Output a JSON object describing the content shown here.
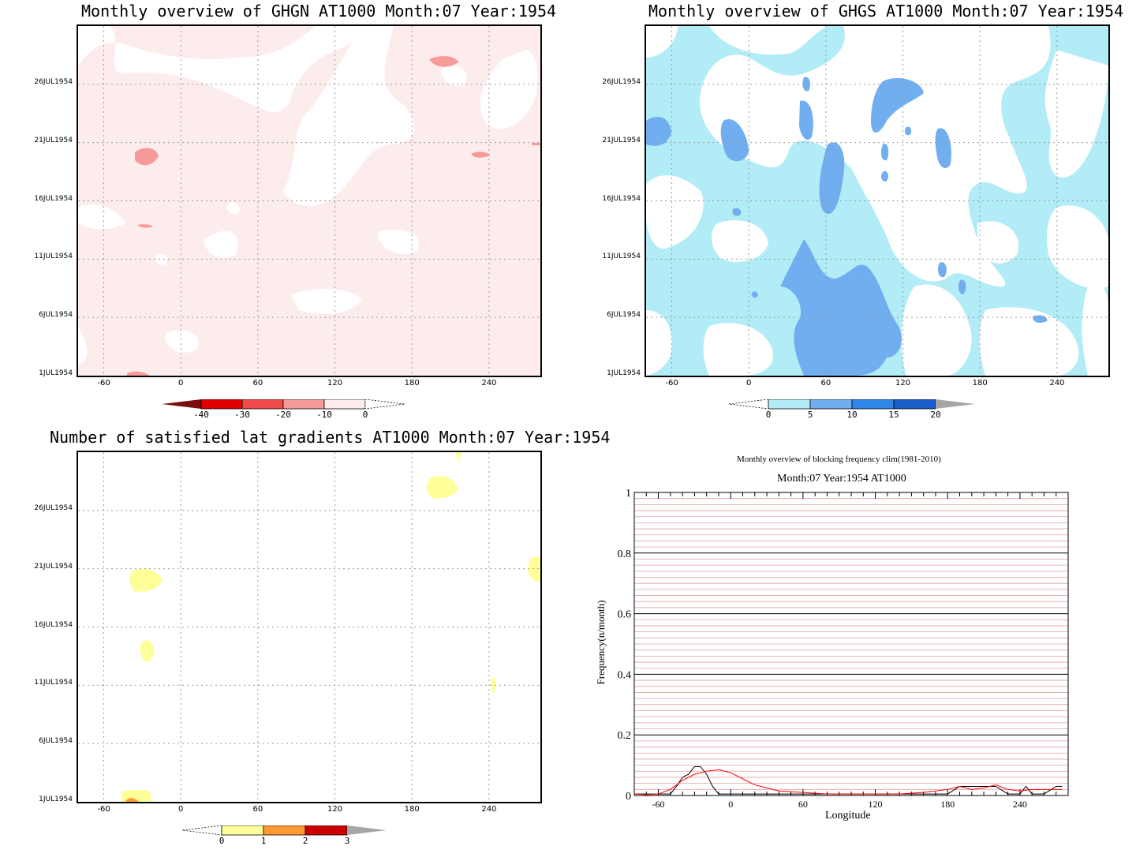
{
  "panels": {
    "ghgn": {
      "title": "Monthly overview of GHGN AT1000 Month:07 Year:1954",
      "y_ticks": [
        "26JUL1954",
        "21JUL1954",
        "16JUL1954",
        "11JUL1954",
        "6JUL1954",
        "1JUL1954"
      ],
      "x_ticks": [
        "-60",
        "0",
        "60",
        "120",
        "180",
        "240"
      ],
      "colorbar_labels": [
        "-40",
        "-30",
        "-20",
        "-10",
        "0"
      ],
      "colors": {
        "fill": "#fdecec",
        "dark": "#7a0d0d",
        "red": "#e00000",
        "mid": "#f04a4a",
        "light": "#f79a9a",
        "pale": "#fdecec"
      }
    },
    "ghgs": {
      "title": "Monthly overview of GHGS AT1000 Month:07 Year:1954",
      "y_ticks": [
        "26JUL1954",
        "21JUL1954",
        "16JUL1954",
        "11JUL1954",
        "6JUL1954",
        "1JUL1954"
      ],
      "x_ticks": [
        "-60",
        "0",
        "60",
        "120",
        "180",
        "240"
      ],
      "colorbar_labels": [
        "0",
        "5",
        "10",
        "15",
        "20"
      ],
      "colors": {
        "c1": "#b2ecf6",
        "c2": "#71aef0",
        "c3": "#2e86e6",
        "c4": "#1a5cc9",
        "over": "#a6a6a6"
      }
    },
    "lat": {
      "title": "Number of satisfied lat gradients AT1000 Month:07 Year:1954",
      "y_ticks": [
        "26JUL1954",
        "21JUL1954",
        "16JUL1954",
        "11JUL1954",
        "6JUL1954",
        "1JUL1954"
      ],
      "x_ticks": [
        "-60",
        "0",
        "60",
        "120",
        "180",
        "240"
      ],
      "colorbar_labels": [
        "0",
        "1",
        "2",
        "3"
      ],
      "colors": {
        "c1": "#ffff99",
        "c2": "#ff9933",
        "c3": "#cc0000",
        "over": "#a6a6a6"
      }
    }
  },
  "chart_data": [
    {
      "type": "heatmap",
      "title": "Monthly overview of GHGN AT1000 Month:07 Year:1954",
      "xlim": [
        -80,
        280
      ],
      "x_ticks": [
        -60,
        0,
        60,
        120,
        180,
        240
      ],
      "y_ticks": [
        "1JUL1954",
        "6JUL1954",
        "11JUL1954",
        "16JUL1954",
        "21JUL1954",
        "26JUL1954"
      ],
      "levels": [
        -40,
        -30,
        -20,
        -10,
        0
      ]
    },
    {
      "type": "heatmap",
      "title": "Monthly overview of GHGS AT1000 Month:07 Year:1954",
      "xlim": [
        -80,
        280
      ],
      "x_ticks": [
        -60,
        0,
        60,
        120,
        180,
        240
      ],
      "y_ticks": [
        "1JUL1954",
        "6JUL1954",
        "11JUL1954",
        "16JUL1954",
        "21JUL1954",
        "26JUL1954"
      ],
      "levels": [
        0,
        5,
        10,
        15,
        20
      ]
    },
    {
      "type": "heatmap",
      "title": "Number of satisfied lat gradients AT1000 Month:07 Year:1954",
      "xlim": [
        -80,
        280
      ],
      "x_ticks": [
        -60,
        0,
        60,
        120,
        180,
        240
      ],
      "y_ticks": [
        "1JUL1954",
        "6JUL1954",
        "11JUL1954",
        "16JUL1954",
        "21JUL1954",
        "26JUL1954"
      ],
      "levels": [
        0,
        1,
        2,
        3
      ]
    },
    {
      "type": "line",
      "title": "Monthly overview of blocking frequency clim(1981-2010)",
      "subtitle": "Month:07 Year:1954  AT1000",
      "xlabel": "Longitude",
      "ylabel": "Frequency(n/month)",
      "xlim": [
        -80,
        280
      ],
      "ylim": [
        0,
        1
      ],
      "x_ticks": [
        -60,
        0,
        60,
        120,
        180,
        240
      ],
      "y_ticks": [
        0,
        0.2,
        0.4,
        0.6,
        0.8,
        1
      ],
      "y_tick_labels": [
        "0",
        "0.2",
        "0.4",
        "0.6",
        "0.8",
        "1"
      ],
      "series": [
        {
          "color": "#000000",
          "x": [
            -80,
            -60,
            -50,
            -45,
            -40,
            -35,
            -30,
            -25,
            -20,
            -15,
            -10,
            0,
            60,
            120,
            180,
            190,
            195,
            200,
            210,
            220,
            230,
            240,
            245,
            250,
            260,
            270,
            275
          ],
          "y": [
            0.005,
            0.005,
            0.005,
            0.03,
            0.06,
            0.07,
            0.095,
            0.095,
            0.07,
            0.03,
            0.005,
            0.005,
            0.005,
            0.005,
            0.005,
            0.03,
            0.03,
            0.03,
            0.03,
            0.03,
            0.005,
            0.005,
            0.03,
            0.005,
            0.005,
            0.03,
            0.03
          ]
        },
        {
          "color": "#ff0000",
          "x": [
            -80,
            -70,
            -60,
            -50,
            -40,
            -30,
            -20,
            -10,
            0,
            10,
            20,
            30,
            40,
            60,
            80,
            100,
            120,
            140,
            160,
            180,
            190,
            200,
            210,
            220,
            230,
            240,
            250,
            260,
            270,
            275
          ],
          "y": [
            0.005,
            0.003,
            0.005,
            0.02,
            0.05,
            0.07,
            0.08,
            0.085,
            0.075,
            0.055,
            0.035,
            0.025,
            0.015,
            0.01,
            0.005,
            0.005,
            0.005,
            0.005,
            0.01,
            0.02,
            0.03,
            0.02,
            0.025,
            0.035,
            0.02,
            0.015,
            0.02,
            0.02,
            0.02,
            0.02
          ]
        }
      ]
    }
  ]
}
